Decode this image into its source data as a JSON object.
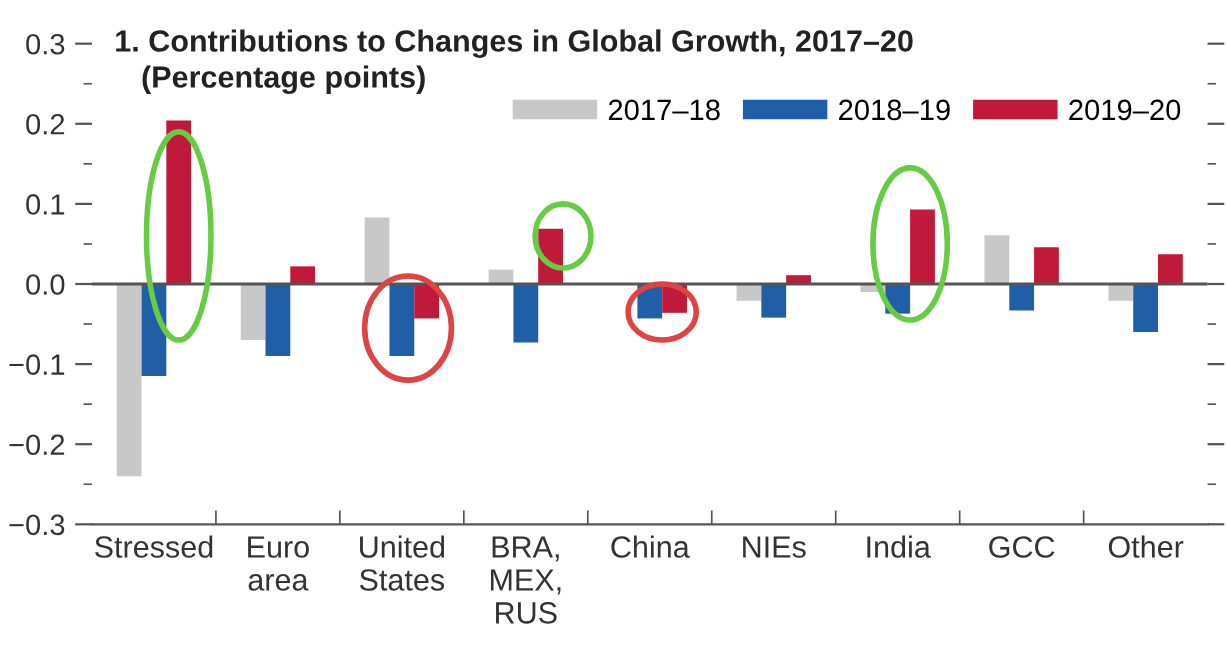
{
  "chart_data": {
    "type": "bar",
    "title": "1. Contributions to Changes in Global Growth, 2017–20",
    "subtitle": "(Percentage points)",
    "categories": [
      "Stressed",
      "Euro\narea",
      "United\nStates",
      "BRA,\nMEX,\nRUS",
      "China",
      "NIEs",
      "India",
      "GCC",
      "Other"
    ],
    "series": [
      {
        "name": "2017–18",
        "color": "#c8c8c8",
        "values": [
          -0.24,
          -0.07,
          0.083,
          0.018,
          0.0,
          -0.021,
          -0.01,
          0.061,
          -0.021
        ]
      },
      {
        "name": "2018–19",
        "color": "#1f5fa8",
        "values": [
          -0.115,
          -0.09,
          -0.09,
          -0.073,
          -0.043,
          -0.042,
          -0.037,
          -0.033,
          -0.06
        ]
      },
      {
        "name": "2019–20",
        "color": "#c0193a",
        "values": [
          0.204,
          0.022,
          -0.043,
          0.069,
          -0.036,
          0.011,
          0.093,
          0.046,
          0.037
        ]
      }
    ],
    "ylim": [
      -0.3,
      0.3
    ],
    "yticks": [
      {
        "value": -0.3,
        "label": "−0.3"
      },
      {
        "value": -0.2,
        "label": "−0.2"
      },
      {
        "value": -0.1,
        "label": "−0.1"
      },
      {
        "value": 0.0,
        "label": "0.0"
      },
      {
        "value": 0.1,
        "label": "0.1"
      },
      {
        "value": 0.2,
        "label": "0.2"
      },
      {
        "value": 0.3,
        "label": "0.3"
      }
    ],
    "ref_lines": [
      {
        "axis": "y",
        "value": 0.0,
        "color": "#555555"
      }
    ],
    "legend": "top right",
    "grid": false
  }
}
